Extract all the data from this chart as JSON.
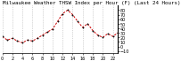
{
  "title": "Milwaukee Weather THSW Index per Hour (F) (Last 24 Hours)",
  "hours": [
    0,
    1,
    2,
    3,
    4,
    5,
    6,
    7,
    8,
    9,
    10,
    11,
    12,
    13,
    14,
    15,
    16,
    17,
    18,
    19,
    20,
    21,
    22,
    23
  ],
  "values": [
    22,
    14,
    18,
    12,
    8,
    14,
    12,
    18,
    25,
    32,
    38,
    55,
    72,
    80,
    70,
    55,
    42,
    50,
    35,
    25,
    20,
    28,
    22,
    30
  ],
  "line_color": "#cc0000",
  "marker_color": "#111111",
  "bg_color": "#ffffff",
  "grid_color": "#999999",
  "title_color": "#000000",
  "ylim": [
    -15,
    90
  ],
  "xlim": [
    0,
    23
  ],
  "yticks": [
    -10,
    0,
    10,
    20,
    30,
    40,
    50,
    60,
    70,
    80
  ],
  "xticks": [
    0,
    2,
    4,
    6,
    8,
    10,
    12,
    14,
    16,
    18,
    20,
    22
  ],
  "title_fontsize": 4.2,
  "tick_fontsize": 3.5
}
